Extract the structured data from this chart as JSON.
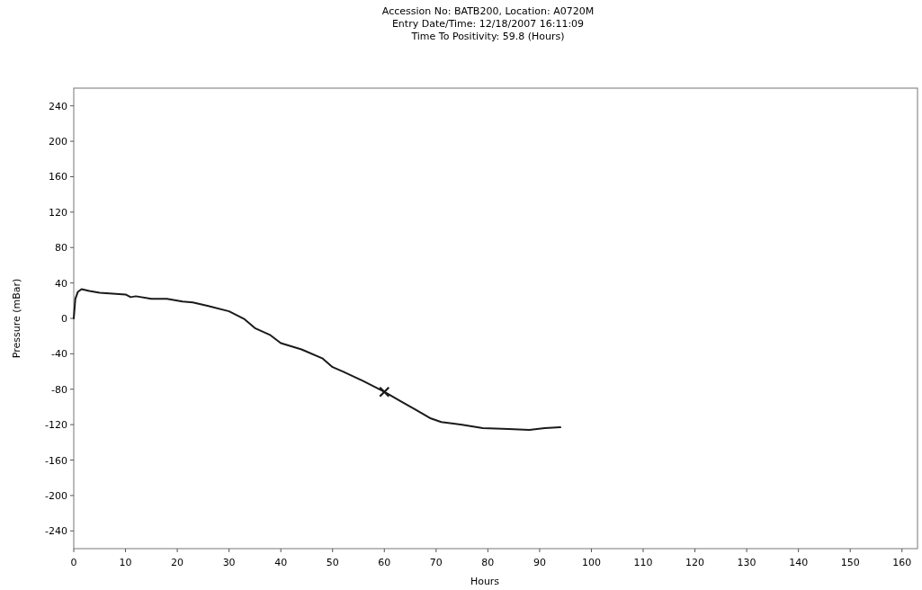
{
  "chart_data": {
    "type": "line",
    "title": "Accession No: BATB200,  Location: A0720M",
    "subtitle": [
      "Entry Date/Time: 12/18/2007 16:11:09",
      "Time To Positivity: 59.8 (Hours)"
    ],
    "xlabel": "Hours",
    "ylabel": "Pressure (mBar)",
    "xlim": [
      0,
      163
    ],
    "ylim": [
      -260,
      260
    ],
    "xticks": [
      0,
      10,
      20,
      30,
      40,
      50,
      60,
      70,
      80,
      90,
      100,
      110,
      120,
      130,
      140,
      150,
      160
    ],
    "yticks": [
      -240,
      -200,
      -160,
      -120,
      -80,
      -40,
      0,
      40,
      80,
      120,
      160,
      200,
      240
    ],
    "grid": false,
    "line_style": "solid",
    "series": [
      {
        "color": "#1a1a1a",
        "x": [
          0,
          0.3,
          0.8,
          1.5,
          3,
          5,
          10,
          11,
          12,
          15,
          18,
          21,
          23,
          26,
          30,
          33,
          35,
          38,
          40,
          44,
          48,
          50,
          52,
          56,
          60,
          63,
          66,
          69,
          71,
          75,
          79,
          84,
          88,
          91,
          94
        ],
        "values": [
          0,
          22,
          30,
          33,
          31,
          29,
          27,
          24,
          25,
          22,
          22,
          19,
          18,
          14,
          8,
          -1,
          -11,
          -19,
          -28,
          -35,
          -45,
          -55,
          -60,
          -71,
          -83,
          -93,
          -103,
          -113,
          -117,
          -120,
          -124,
          -125,
          -126,
          -124,
          -123
        ]
      },
      {
        "type": "scatter",
        "color": "#1a1a1a",
        "marker": "cross",
        "x": [
          60
        ],
        "values": [
          -83
        ]
      }
    ]
  }
}
